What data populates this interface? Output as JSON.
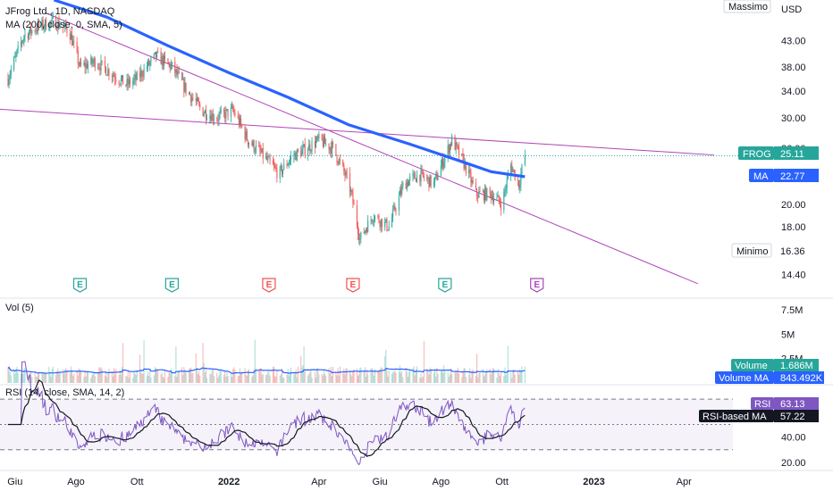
{
  "header": {
    "title": "JFrog Ltd., 1D, NASDAQ",
    "ma_label": "MA (200, close, 0, SMA, 5)",
    "vol_label": "Vol (5)",
    "rsi_label": "RSI (14, close, SMA, 14, 2)"
  },
  "currency": "USD",
  "colors": {
    "up": "#26a69a",
    "down": "#ef5350",
    "ma": "#2962ff",
    "trendline": "#b245b8",
    "rsi": "#7e57c2",
    "rsi_ma": "#131722",
    "volume_ma": "#2962ff",
    "earnings_up": "#26a69a",
    "earnings_down": "#ef5350",
    "earnings_next": "#ab47bc"
  },
  "tags": {
    "massimo": "Massimo",
    "minimo_label": "Minimo",
    "minimo_value": "16.36",
    "frog_label": "FROG",
    "frog_value": "25.11",
    "ma_label": "MA",
    "ma_value": "22.77",
    "volume_label": "Volume",
    "volume_value": "1.686M",
    "volume_ma_label": "Volume MA",
    "volume_ma_value": "843.492K",
    "rsi_label": "RSI",
    "rsi_value": "63.13",
    "rsi_ma_label": "RSI-based MA",
    "rsi_ma_value": "57.22"
  },
  "earnings_marker": "E",
  "chart_data": [
    {
      "type": "candlestick",
      "title": "JFrog Ltd., 1D, NASDAQ",
      "y_scale": "log",
      "y_ticks": [
        "43.00",
        "38.00",
        "34.00",
        "30.00",
        "26.00",
        "20.00",
        "18.00",
        "16.00",
        "14.40"
      ],
      "x_ticks": [
        "Giu",
        "Ago",
        "Ott",
        "2022",
        "Apr",
        "Giu",
        "Ago",
        "Ott",
        "2023",
        "Apr"
      ],
      "close_path": [
        [
          "2021-05-25",
          36
        ],
        [
          "2021-06-10",
          44
        ],
        [
          "2021-06-25",
          46
        ],
        [
          "2021-07-10",
          47
        ],
        [
          "2021-07-25",
          45
        ],
        [
          "2021-08-05",
          38
        ],
        [
          "2021-08-20",
          39
        ],
        [
          "2021-09-05",
          37
        ],
        [
          "2021-09-20",
          35
        ],
        [
          "2021-10-01",
          36
        ],
        [
          "2021-10-20",
          40
        ],
        [
          "2021-11-05",
          38
        ],
        [
          "2021-11-20",
          34
        ],
        [
          "2021-12-05",
          31
        ],
        [
          "2021-12-20",
          30
        ],
        [
          "2022-01-05",
          31
        ],
        [
          "2022-01-20",
          27
        ],
        [
          "2022-02-05",
          25
        ],
        [
          "2022-02-20",
          23
        ],
        [
          "2022-03-05",
          25
        ],
        [
          "2022-03-20",
          26
        ],
        [
          "2022-04-01",
          27
        ],
        [
          "2022-04-15",
          26
        ],
        [
          "2022-05-01",
          22
        ],
        [
          "2022-05-12",
          17
        ],
        [
          "2022-05-25",
          19
        ],
        [
          "2022-06-10",
          18
        ],
        [
          "2022-06-25",
          22
        ],
        [
          "2022-07-10",
          23
        ],
        [
          "2022-07-25",
          22
        ],
        [
          "2022-08-05",
          25
        ],
        [
          "2022-08-12",
          27
        ],
        [
          "2022-08-25",
          24
        ],
        [
          "2022-09-05",
          21
        ],
        [
          "2022-09-20",
          21
        ],
        [
          "2022-10-01",
          20
        ],
        [
          "2022-10-10",
          24
        ],
        [
          "2022-10-18",
          22
        ],
        [
          "2022-10-24",
          25.11
        ]
      ],
      "ma200_path": [
        [
          "2021-07-10",
          52
        ],
        [
          "2021-09-01",
          48
        ],
        [
          "2021-11-01",
          42
        ],
        [
          "2022-01-01",
          37
        ],
        [
          "2022-03-01",
          33
        ],
        [
          "2022-05-01",
          29
        ],
        [
          "2022-07-01",
          26.5
        ],
        [
          "2022-08-20",
          24.5
        ],
        [
          "2022-09-20",
          23.3
        ],
        [
          "2022-10-24",
          22.77
        ]
      ],
      "trendlines": [
        {
          "from": [
            "2021-04-15",
            31.5
          ],
          "to": [
            "2023-05-01",
            25.2
          ]
        },
        {
          "from": [
            "2021-07-01",
            49
          ],
          "to": [
            "2023-04-15",
            13.8
          ]
        }
      ],
      "last_close": 25.11,
      "ma200_last": 22.77,
      "massimo": "Massimo",
      "minimo": 16.36,
      "earnings": [
        {
          "date": "2021-08-05",
          "kind": "up"
        },
        {
          "date": "2021-11-05",
          "kind": "up"
        },
        {
          "date": "2022-02-10",
          "kind": "down"
        },
        {
          "date": "2022-05-05",
          "kind": "down"
        },
        {
          "date": "2022-08-05",
          "kind": "up"
        },
        {
          "date": "2022-11-05",
          "kind": "next"
        }
      ]
    },
    {
      "type": "bar",
      "title": "Vol (5)",
      "y_ticks": [
        "7.5M",
        "5M",
        "2.5M"
      ],
      "last_volume": "1.686M",
      "volume_ma": "843.492K"
    },
    {
      "type": "line",
      "title": "RSI (14, close, SMA, 14, 2)",
      "y_ticks": [
        "60.00",
        "40.00",
        "20.00"
      ],
      "levels": [
        70,
        50,
        30
      ],
      "rsi_last": 63.13,
      "rsi_ma_last": 57.22
    }
  ]
}
